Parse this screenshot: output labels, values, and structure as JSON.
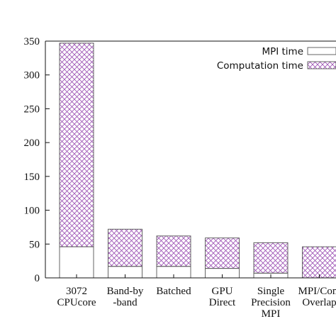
{
  "chart_data": {
    "type": "bar",
    "stacked": true,
    "categories": [
      [
        "3072",
        "CPUcore"
      ],
      [
        "Band-by",
        "-band"
      ],
      [
        "Batched"
      ],
      [
        "GPU",
        "Direct"
      ],
      [
        "Single",
        "Precision",
        "MPI"
      ],
      [
        "MPI/Com",
        "Overlap"
      ]
    ],
    "series": [
      {
        "name": "MPI time",
        "values": [
          46,
          17,
          17,
          14,
          7,
          0
        ],
        "color": "#ffffff",
        "pattern": "none"
      },
      {
        "name": "Computation time",
        "values": [
          301,
          55,
          45,
          45,
          45,
          46
        ],
        "color": "#9b4fb3",
        "pattern": "crosshatch"
      }
    ],
    "ylim": [
      0,
      350
    ],
    "yticks": [
      0,
      50,
      100,
      150,
      200,
      250,
      300,
      350
    ],
    "title": "",
    "xlabel": "",
    "ylabel": "",
    "legend_position": "top-right",
    "grid": false
  }
}
